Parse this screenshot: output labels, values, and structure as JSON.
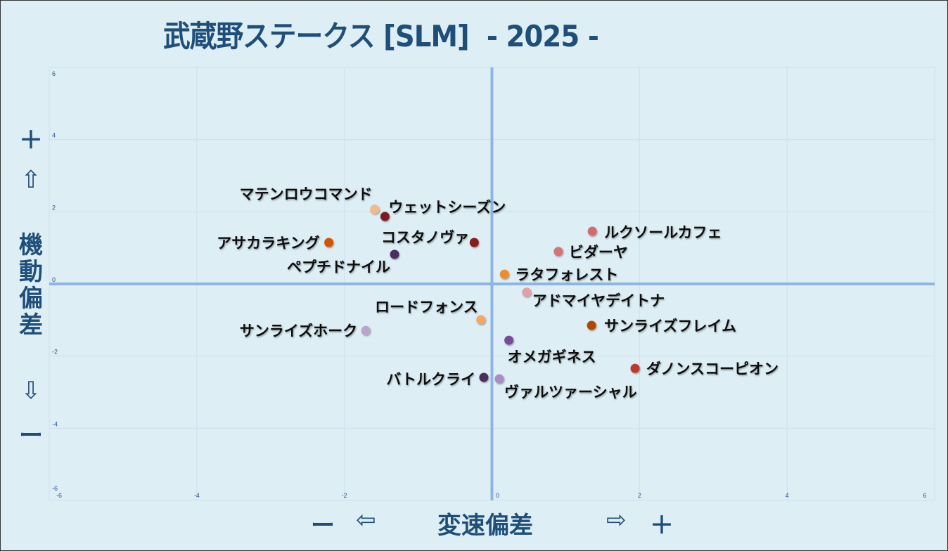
{
  "title": "武蔵野ステークス [SLM]  - 2025 -",
  "y_axis": {
    "plus": "＋",
    "up_arrow": "⇧",
    "label": "機動偏差",
    "down_arrow": "⇩",
    "minus": "ー"
  },
  "x_axis": {
    "minus": "ー",
    "left_arrow": "⇦",
    "label": "変速偏差",
    "right_arrow": "⇨",
    "plus": "＋"
  },
  "chart_data": {
    "type": "scatter",
    "title": "武蔵野ステークス [SLM]  - 2025 -",
    "xlabel": "変速偏差",
    "ylabel": "機動偏差",
    "xlim": [
      -6,
      6
    ],
    "ylim": [
      -6,
      6
    ],
    "x_ticks": [
      "-6",
      "-4",
      "-2",
      "0",
      "2",
      "4",
      "6"
    ],
    "y_ticks": [
      "6",
      "4",
      "2",
      "0",
      "-2",
      "-4",
      "-6"
    ],
    "grid": true,
    "points": [
      {
        "name": "マテンロウコマンド",
        "x": -1.59,
        "y": 2.07,
        "color": "#f4b98a"
      },
      {
        "name": "ウェットシーズン",
        "x": -1.45,
        "y": 1.87,
        "color": "#7b1f22"
      },
      {
        "name": "アサカラキング",
        "x": -2.21,
        "y": 1.15,
        "color": "#d35400"
      },
      {
        "name": "ペプチドナイル",
        "x": -1.32,
        "y": 0.82,
        "color": "#4b2d5c"
      },
      {
        "name": "コスタノヴァ",
        "x": -0.24,
        "y": 1.15,
        "color": "#8b1c1c"
      },
      {
        "name": "ルクソールカフェ",
        "x": 1.36,
        "y": 1.46,
        "color": "#d46a6a"
      },
      {
        "name": "ビダーヤ",
        "x": 0.9,
        "y": 0.9,
        "color": "#d47474"
      },
      {
        "name": "ラタフォレスト",
        "x": 0.17,
        "y": 0.27,
        "color": "#f28c28"
      },
      {
        "name": "アドマイヤデイトナ",
        "x": 0.47,
        "y": -0.23,
        "color": "#e3a0a0"
      },
      {
        "name": "ロードフォンス",
        "x": -0.15,
        "y": -0.99,
        "color": "#f6a862"
      },
      {
        "name": "サンライズホーク",
        "x": -1.71,
        "y": -1.29,
        "color": "#bba3cc"
      },
      {
        "name": "サンライズフレイム",
        "x": 1.35,
        "y": -1.15,
        "color": "#b34700"
      },
      {
        "name": "オメガギネス",
        "x": 0.23,
        "y": -1.56,
        "color": "#7a4a9c"
      },
      {
        "name": "ダノンスコーピオン",
        "x": 1.94,
        "y": -2.34,
        "color": "#c0392b"
      },
      {
        "name": "バトルクライ",
        "x": -0.11,
        "y": -2.59,
        "color": "#4b2d5c"
      },
      {
        "name": "ヴァルツァーシャル",
        "x": 0.1,
        "y": -2.63,
        "color": "#a88dc2"
      }
    ]
  }
}
